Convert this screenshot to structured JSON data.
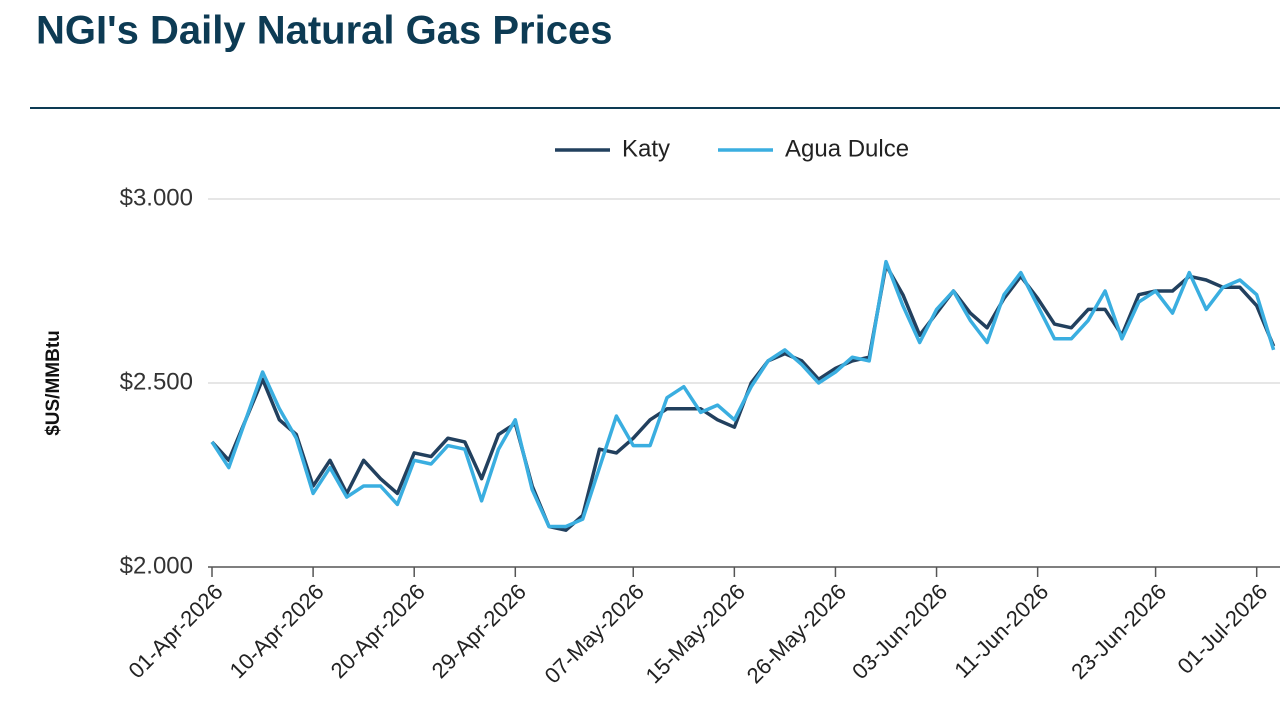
{
  "chart_data": {
    "type": "line",
    "title": "NGI's Daily Natural Gas Prices",
    "y_label": "$US/MMBtu",
    "categories": [
      "01-Apr-2026",
      null,
      null,
      null,
      null,
      null,
      "10-Apr-2026",
      null,
      null,
      null,
      null,
      null,
      "20-Apr-2026",
      null,
      null,
      null,
      null,
      null,
      "29-Apr-2026",
      null,
      null,
      null,
      null,
      null,
      null,
      "07-May-2026",
      null,
      null,
      null,
      null,
      null,
      "15-May-2026",
      null,
      null,
      null,
      null,
      null,
      "26-May-2026",
      null,
      null,
      null,
      null,
      null,
      "03-Jun-2026",
      null,
      null,
      null,
      null,
      null,
      "11-Jun-2026",
      null,
      null,
      null,
      null,
      null,
      null,
      "23-Jun-2026",
      null,
      null,
      null,
      null,
      null,
      "01-Jul-2026",
      null
    ],
    "series": [
      {
        "name": "Katy",
        "color": "#22405e",
        "values": [
          2.34,
          2.29,
          2.4,
          2.51,
          2.4,
          2.36,
          2.22,
          2.29,
          2.2,
          2.29,
          2.24,
          2.2,
          2.31,
          2.3,
          2.35,
          2.34,
          2.24,
          2.36,
          2.39,
          2.22,
          2.11,
          2.1,
          2.14,
          2.32,
          2.31,
          2.35,
          2.4,
          2.43,
          2.43,
          2.43,
          2.4,
          2.38,
          2.5,
          2.56,
          2.58,
          2.56,
          2.51,
          2.54,
          2.56,
          2.57,
          2.82,
          2.74,
          2.63,
          2.69,
          2.75,
          2.69,
          2.65,
          2.73,
          2.79,
          2.73,
          2.66,
          2.65,
          2.7,
          2.7,
          2.63,
          2.74,
          2.75,
          2.75,
          2.79,
          2.78,
          2.76,
          2.76,
          2.71,
          2.6
        ]
      },
      {
        "name": "Agua Dulce",
        "color": "#3aaee0",
        "values": [
          2.34,
          2.27,
          2.4,
          2.53,
          2.43,
          2.35,
          2.2,
          2.27,
          2.19,
          2.22,
          2.22,
          2.17,
          2.29,
          2.28,
          2.33,
          2.32,
          2.18,
          2.32,
          2.4,
          2.21,
          2.11,
          2.11,
          2.13,
          2.27,
          2.41,
          2.33,
          2.33,
          2.46,
          2.49,
          2.42,
          2.44,
          2.4,
          2.49,
          2.56,
          2.59,
          2.55,
          2.5,
          2.53,
          2.57,
          2.56,
          2.83,
          2.71,
          2.61,
          2.7,
          2.75,
          2.67,
          2.61,
          2.74,
          2.8,
          2.71,
          2.62,
          2.62,
          2.67,
          2.75,
          2.62,
          2.72,
          2.75,
          2.69,
          2.8,
          2.7,
          2.76,
          2.78,
          2.74,
          2.59
        ]
      }
    ],
    "ylim": [
      2,
      3
    ],
    "yticks": [
      {
        "value": 2,
        "label": "$2.000"
      },
      {
        "value": 2.5,
        "label": "$2.500"
      },
      {
        "value": 3,
        "label": "$3.000"
      }
    ],
    "grid": true,
    "legend": "top"
  }
}
